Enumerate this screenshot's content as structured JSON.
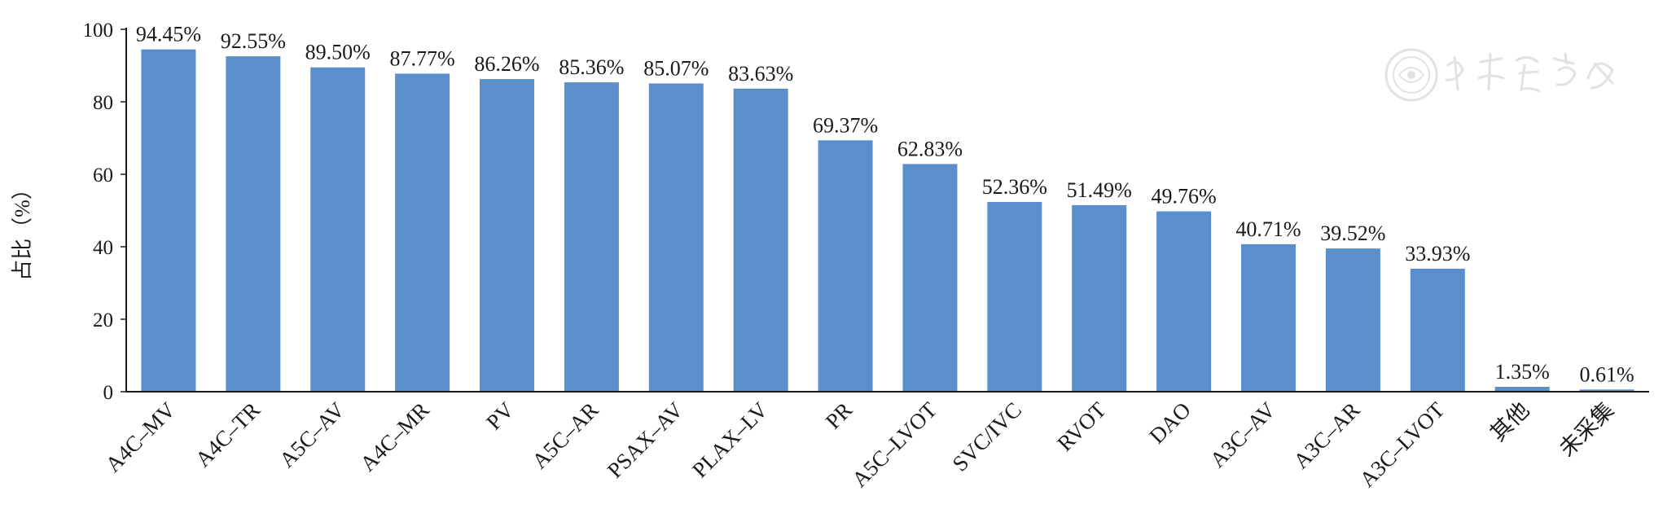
{
  "chart_data": {
    "type": "bar",
    "title": "",
    "xlabel": "",
    "ylabel": "占比（%）",
    "ylim": [
      0,
      100
    ],
    "yticks": [
      0,
      20,
      40,
      60,
      80,
      100
    ],
    "grid": false,
    "legend": "none",
    "categories": [
      "A4C–MV",
      "A4C–TR",
      "A5C–AV",
      "A4C–MR",
      "PV",
      "A5C–AR",
      "PSAX–AV",
      "PLAX–LV",
      "PR",
      "A5C–LVOT",
      "SVC/IVC",
      "RVOT",
      "DAO",
      "A3C–AV",
      "A3C–AR",
      "A3C–LVOT",
      "其他",
      "未采集"
    ],
    "values": [
      94.45,
      92.55,
      89.5,
      87.77,
      86.26,
      85.36,
      85.07,
      83.63,
      69.37,
      62.83,
      52.36,
      51.49,
      49.76,
      40.71,
      39.52,
      33.93,
      1.35,
      0.61
    ],
    "data_labels": [
      "94.45%",
      "92.55%",
      "89.50%",
      "87.77%",
      "86.26%",
      "85.36%",
      "85.07%",
      "83.63%",
      "69.37%",
      "62.83%",
      "52.36%",
      "51.49%",
      "49.76%",
      "40.71%",
      "39.52%",
      "33.93%",
      "1.35%",
      "0.61%"
    ],
    "bar_color": "#5b8fcb"
  },
  "watermark": {
    "text": "中华医学会"
  }
}
